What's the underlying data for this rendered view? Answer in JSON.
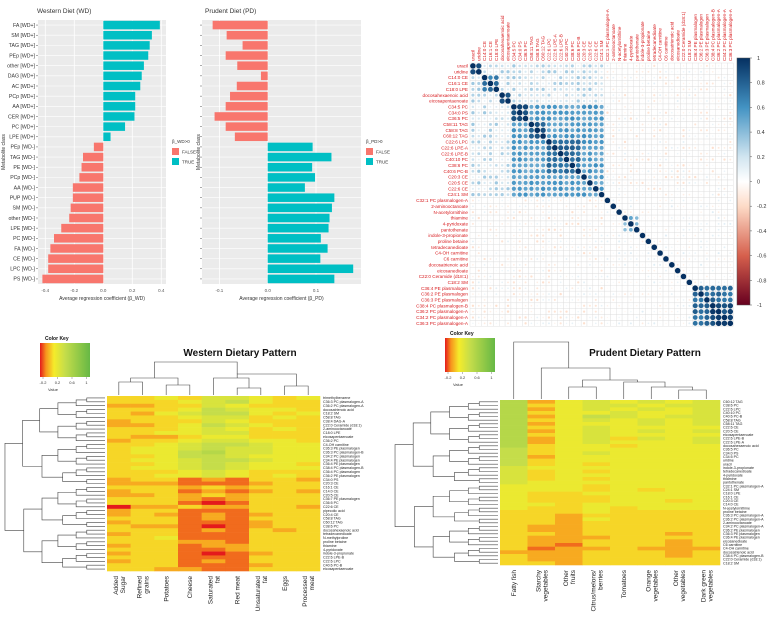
{
  "chart_data": [
    {
      "type": "bar",
      "orientation": "horizontal",
      "title": "Western Diet (WD)",
      "xlabel": "Average regression coefficient (β_WD)",
      "ylabel": "Metabolite class",
      "xlim": [
        -0.45,
        0.45
      ],
      "xticks": [
        "-0.4",
        "-0.2",
        "0.0",
        "0.2",
        "0.4"
      ],
      "grid": true,
      "legend": {
        "title": "β_WD>0",
        "entries": [
          "FALSE",
          "TRUE"
        ],
        "placement": "right"
      },
      "categories": [
        "FA [WD+]",
        "SM [WD+]",
        "TAG [WD+]",
        "PEp [WD+]",
        "other [WD+]",
        "DAG [WD+]",
        "AC [WD+]",
        "PCp [WD+]",
        "AA [WD+]",
        "CER [WD+]",
        "PC [WD+]",
        "LPE [WD+]",
        "PEp [WD-]",
        "TAG [WD-]",
        "PE [WD-]",
        "PCp [WD-]",
        "AA [WD-]",
        "PUP [WD-]",
        "SM [WD-]",
        "other [WD-]",
        "LPE [WD-]",
        "PC [WD-]",
        "FA [WD-]",
        "CE [WD-]",
        "LPC [WD-]",
        "PS [WD-]"
      ],
      "values": [
        0.39,
        0.335,
        0.32,
        0.31,
        0.28,
        0.265,
        0.255,
        0.22,
        0.22,
        0.215,
        0.15,
        0.05,
        -0.065,
        -0.14,
        -0.15,
        -0.165,
        -0.21,
        -0.21,
        -0.225,
        -0.235,
        -0.29,
        -0.34,
        -0.365,
        -0.38,
        -0.38,
        -0.42
      ]
    },
    {
      "type": "bar",
      "orientation": "horizontal",
      "title": "Prudent Diet (PD)",
      "xlabel": "Average regression coefficient (β_PD)",
      "ylabel": "Metabolite class",
      "xlim": [
        -0.135,
        0.19
      ],
      "xticks": [
        "-0.1",
        "0.0",
        "0.1"
      ],
      "grid": true,
      "legend": {
        "title": "β_PD>0",
        "entries": [
          "FALSE",
          "TRUE"
        ],
        "placement": "right"
      },
      "values": [
        -0.114,
        -0.085,
        -0.052,
        -0.087,
        -0.063,
        -0.014,
        -0.064,
        -0.078,
        -0.087,
        -0.11,
        -0.087,
        -0.068,
        0.093,
        0.132,
        0.092,
        0.098,
        0.077,
        0.138,
        0.133,
        0.128,
        0.126,
        0.11,
        0.124,
        0.109,
        0.177,
        0.138
      ]
    },
    {
      "type": "heatmap",
      "subtype": "correlation",
      "labels": [
        "uracil",
        "uridine",
        "C14:0 CE",
        "C16:1 CE",
        "C18:0 LPE",
        "docosahexaenoic acid",
        "eicosapentaenoate",
        "C34:5 PC",
        "C34:0 PS",
        "C36:5 PC",
        "C58:11 TAG",
        "C58:8 TAG",
        "C60:12 TAG",
        "C22:6 LPC",
        "C22:6 LPE-A",
        "C22:6 LPE-B",
        "C40:10 PC",
        "C38:6 PC",
        "C40:6 PC-B",
        "C20:3 CE",
        "C20:5 CE",
        "C22:6 CE",
        "C24:1 SM",
        "C32:1 PC plasmalogen-A",
        "2-aminooctanoate",
        "N-acetylornithine",
        "thiamine",
        "4-pyridoxate",
        "pantothenate",
        "indole-3-propionate",
        "proline betaine",
        "tetradecanedioate",
        "C4-OH carnitine",
        "C6 carnitine",
        "docosatrienoic acid",
        "eicosanedioate",
        "C22:0 Ceramide (d18:1)",
        "C18:2 SM",
        "C36:4 PE plasmalogen",
        "C36:2 PE plasmalogen",
        "C36:3 PE plasmalogen",
        "C38:4 PC plasmalogen-B",
        "C36:2 PC plasmalogen-A",
        "C34:2 PC plasmalogen-A",
        "C36:3 PC plasmalogen-A"
      ],
      "clusters": [
        {
          "from": 0,
          "to": 1,
          "r": 0.95
        },
        {
          "from": 2,
          "to": 4,
          "r": 0.7
        },
        {
          "from": 5,
          "to": 6,
          "r": 0.9
        },
        {
          "from": 7,
          "to": 22,
          "r": 0.55
        },
        {
          "from": 7,
          "to": 9,
          "r": 0.9
        },
        {
          "from": 10,
          "to": 12,
          "r": 0.85
        },
        {
          "from": 13,
          "to": 18,
          "r": 0.75
        },
        {
          "from": 19,
          "to": 21,
          "r": 0.5
        },
        {
          "from": 26,
          "to": 28,
          "r": 0.45
        },
        {
          "from": 38,
          "to": 44,
          "r": 0.75
        },
        {
          "from": 41,
          "to": 44,
          "r": 0.9
        }
      ],
      "colorbar": {
        "range": [
          -1,
          1
        ],
        "ticks": [
          "1",
          "0.8",
          "0.6",
          "0.4",
          "0.2",
          "0",
          "-0.2",
          "-0.4",
          "-0.6",
          "-0.8",
          "-1"
        ],
        "low": "#67001f",
        "mid": "#ffffff",
        "high": "#053061"
      }
    },
    {
      "type": "heatmap",
      "title": "Western Dietary Pattern",
      "color_key": {
        "title": "Color Key",
        "xlabel": "Value",
        "ticks": [
          "-0.2",
          "0.2",
          "0.6",
          "1"
        ],
        "range": [
          -0.2,
          1
        ]
      },
      "columns": [
        "Added Sugar",
        "Refined grains",
        "Potatoes",
        "Cheese",
        "Saturated fat",
        "Red meat",
        "Unsaturated fat",
        "Eggs",
        "Processed meat"
      ],
      "rows": [
        "trimethylbenzene",
        "C36:3 PC plasmalogen-A",
        "C36:2 PC plasmalogen-A",
        "docosatrienoic acid",
        "C18:2 SM",
        "C58:8 TAG",
        "C38:4 DAG-A",
        "C22:0 Ceramide (d18:1)",
        "2-aminooctanoate",
        "C18:0 LPE",
        "eicosapentaenoate",
        "C36:2 PC",
        "C4-OH carnitine",
        "C36:3 PE plasmalogen",
        "C36:3 PC plasmalogen-B",
        "C34:2 PC plasmalogen",
        "C34:4 PE plasmalogen",
        "C36:4 PE plasmalogen",
        "C38:4 PC plasmalogen-B",
        "C36:4 PC plasmalogen",
        "C36:2 PE plasmalogen",
        "C34:0 PS",
        "C20:3 CE",
        "C16:1 CE",
        "C14:0 CE",
        "C20:5 CE",
        "C36:7 PE plasmalogen",
        "C36:5 PC",
        "C22:6 CE",
        "pipecolic acid",
        "C20:4 CE",
        "C58:8 TAG",
        "C60:12 TAG",
        "C38:6 PC",
        "docosahexaenoic acid",
        "tetradecanedioate",
        "N-methylproline",
        "proline betaine",
        "thiamine",
        "4-pyridoxate",
        "indole-3-propionate",
        "C22:6 LPE-B",
        "C22:6 LPC",
        "C40:6 PC-B",
        "eicosapentaenoate"
      ],
      "values_levels": [
        "334355434",
        "333456433",
        "223354333",
        "333465443",
        "324566434",
        "333455343",
        "233354333",
        "223465433",
        "333454343",
        "334455333",
        "322344333",
        "233455443",
        "334566544",
        "344565544",
        "344675544",
        "334665444",
        "344566544",
        "334565443",
        "344565444",
        "333454333",
        "334454343",
        "233121332",
        "222111233",
        "333232333",
        "233121232",
        "223232333",
        "333212333",
        "333101333",
        "022322332",
        "233111333",
        "232121233",
        "333121333",
        "233111233",
        "322101233",
        "333121323",
        "233111333",
        "334111333",
        "333221333",
        "233122333",
        "333112333",
        "233101233",
        "333111333",
        "233121333",
        "333111233",
        "332211333"
      ],
      "level_scale": "value = -0.2 + 0.1 × level"
    },
    {
      "type": "heatmap",
      "title": "Prudent Dietary Pattern",
      "color_key": {
        "title": "Color Key",
        "xlabel": "Value",
        "ticks": [
          "-0.2",
          "0.2",
          "0.6",
          "1"
        ],
        "range": [
          -0.2,
          1
        ]
      },
      "columns": [
        "Fatty fish",
        "Starchy vegetables",
        "Other fruits",
        "Citrus/melons/ berries",
        "Tomatoes",
        "Orange vegetables",
        "Other vegetables",
        "Dark green vegetables"
      ],
      "rows": [
        "C60:12 TAG",
        "C38:6 PC",
        "C22:6 LPC",
        "C40:10 PC",
        "C40:6 PC-B",
        "C58:8 TAG",
        "C58:11 TAG",
        "C22:6 CE",
        "C20:5 CE",
        "eicosapentaenoate",
        "C22:6 LPE-B",
        "C22:6 LPE-A",
        "docosahexaenoic acid",
        "C36:5 PC",
        "C34:0 PS",
        "C34:5 PC",
        "uridine",
        "uracil",
        "indole-3-propionate",
        "tetradecanedioate",
        "4-pyridoxate",
        "thiamine",
        "pantothenate",
        "C32:1 PC plasmalogen-A",
        "C24:1 SM",
        "C18:0 LPE",
        "C16:1 CE",
        "C20:3 CE",
        "C14:0 CE",
        "N-acetylornithine",
        "proline betaine",
        "C36:3 PC plasmalogen-A",
        "C36:2 PC plasmalogen-A",
        "2-aminooctanoate",
        "C34:2 PC plasmalogen-A",
        "C36:2 PE plasmalogen",
        "C36:3 PE plasmalogen",
        "C36:4 PE plasmalogen",
        "eicosanedioate",
        "C6 carnitine",
        "C4-OH carnitine",
        "docosatrienoic acid",
        "C38:4 PC plasmalogen-B",
        "C22:0 Ceramide (d18:1)",
        "C18:2 SM"
      ],
      "values_levels": [
        "72454545",
        "73455455",
        "72454545",
        "73445445",
        "72465455",
        "73454545",
        "72444545",
        "73454444",
        "72454545",
        "73454444",
        "72453545",
        "72454445",
        "73443444",
        "63444444",
        "63454444",
        "62444444",
        "63444444",
        "63434444",
        "54444444",
        "53434444",
        "53444444",
        "53434444",
        "54444444",
        "44434444",
        "44434344",
        "43344444",
        "43334444",
        "43334434",
        "44344444",
        "43343444",
        "33343333",
        "33233333",
        "33243333",
        "33233333",
        "32233333",
        "32233333",
        "33233323",
        "32223333",
        "32233323",
        "32133323",
        "31223222",
        "22233323",
        "32233323",
        "32233333",
        "33233333"
      ],
      "level_scale": "value = -0.2 + 0.1 × level"
    }
  ],
  "colors": {
    "false": "#f8766d",
    "true": "#00bfc4",
    "panel_bg": "#ebebeb",
    "label_red": "#d7191c"
  }
}
